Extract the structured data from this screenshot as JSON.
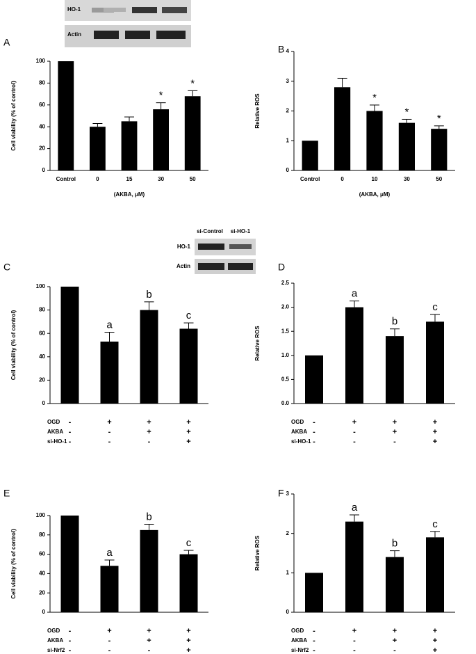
{
  "chart_data": [
    {
      "type": "bar",
      "panel": "A",
      "ylabel": "Cell viability (% of control)",
      "xlabel": "(AKBA, μM)",
      "categories": [
        "Control",
        "0",
        "15",
        "30",
        "50"
      ],
      "values": [
        100,
        40,
        45,
        56,
        68
      ],
      "errors": [
        null,
        3,
        4,
        6,
        5
      ],
      "bar_labels": [
        null,
        null,
        null,
        "*",
        "*"
      ],
      "color": "#000000",
      "ylim": [
        0,
        100
      ],
      "yticks": [
        0,
        20,
        40,
        60,
        80,
        100
      ],
      "blot": {
        "rows": [
          "HO-1",
          "Actin"
        ]
      }
    },
    {
      "type": "bar",
      "panel": "B",
      "ylabel": "Relative ROS",
      "xlabel": "(AKBA, μM)",
      "categories": [
        "Control",
        "0",
        "10",
        "30",
        "50"
      ],
      "values": [
        1,
        2.8,
        2.0,
        1.6,
        1.4
      ],
      "errors": [
        null,
        0.3,
        0.2,
        0.12,
        0.1
      ],
      "bar_labels": [
        null,
        null,
        "*",
        "*",
        "*"
      ],
      "color": "#000000",
      "ylim": [
        0,
        4
      ],
      "yticks": [
        0,
        1,
        2,
        3,
        4
      ]
    },
    {
      "type": "bar",
      "panel": "C",
      "ylabel": "Cell viability (% of control)",
      "values": [
        100,
        53,
        80,
        64
      ],
      "errors": [
        null,
        8,
        7,
        5
      ],
      "bar_labels": [
        null,
        "a",
        "b",
        "c"
      ],
      "color": "#000000",
      "conditions": [
        {
          "name": "OGD",
          "marks": [
            "-",
            "+",
            "+",
            "+"
          ]
        },
        {
          "name": "AKBA",
          "marks": [
            "-",
            "-",
            "+",
            "+"
          ]
        },
        {
          "name": "si-HO-1",
          "marks": [
            "-",
            "-",
            "-",
            "+"
          ]
        }
      ],
      "ylim": [
        0,
        100
      ],
      "yticks": [
        0,
        20,
        40,
        60,
        80,
        100
      ],
      "blot": {
        "lanes": [
          "si-Control",
          "si-HO-1"
        ],
        "rows": [
          "HO-1",
          "Actin"
        ]
      }
    },
    {
      "type": "bar",
      "panel": "D",
      "ylabel": "Relative ROS",
      "values": [
        1.0,
        2.0,
        1.4,
        1.7
      ],
      "errors": [
        null,
        0.13,
        0.15,
        0.15
      ],
      "bar_labels": [
        null,
        "a",
        "b",
        "c"
      ],
      "color": "#000000",
      "conditions": [
        {
          "name": "OGD",
          "marks": [
            "-",
            "+",
            "+",
            "+"
          ]
        },
        {
          "name": "AKBA",
          "marks": [
            "-",
            "-",
            "+",
            "+"
          ]
        },
        {
          "name": "si-HO-1",
          "marks": [
            "-",
            "-",
            "-",
            "+"
          ]
        }
      ],
      "ylim": [
        0,
        2.5
      ],
      "yticks": [
        {
          "value": 0,
          "label": "0.0"
        },
        0.5,
        {
          "value": 1,
          "label": "1.0"
        },
        1.5,
        {
          "value": 2,
          "label": "2.0"
        },
        2.5
      ]
    },
    {
      "type": "bar",
      "panel": "E",
      "ylabel": "Cell viability (% of control)",
      "values": [
        100,
        48,
        85,
        60
      ],
      "errors": [
        null,
        6,
        6,
        4
      ],
      "bar_labels": [
        null,
        "a",
        "b",
        "c"
      ],
      "color": "#000000",
      "conditions": [
        {
          "name": "OGD",
          "marks": [
            "-",
            "+",
            "+",
            "+"
          ]
        },
        {
          "name": "AKBA",
          "marks": [
            "-",
            "-",
            "+",
            "+"
          ]
        },
        {
          "name": "si-Nrf2",
          "marks": [
            "-",
            "-",
            "-",
            "+"
          ]
        }
      ],
      "ylim": [
        0,
        100
      ],
      "yticks": [
        0,
        20,
        40,
        60,
        80,
        100
      ]
    },
    {
      "type": "bar",
      "panel": "F",
      "ylabel": "Relative ROS",
      "values": [
        1,
        2.3,
        1.4,
        1.9
      ],
      "errors": [
        null,
        0.17,
        0.16,
        0.15
      ],
      "bar_labels": [
        null,
        "a",
        "b",
        "c"
      ],
      "color": "#000000",
      "conditions": [
        {
          "name": "OGD",
          "marks": [
            "-",
            "+",
            "+",
            "+"
          ]
        },
        {
          "name": "AKBA",
          "marks": [
            "-",
            "-",
            "+",
            "+"
          ]
        },
        {
          "name": "si-Nrf2",
          "marks": [
            "-",
            "-",
            "-",
            "+"
          ]
        }
      ],
      "ylim": [
        0,
        3
      ],
      "yticks": [
        0,
        1,
        2,
        3
      ]
    }
  ]
}
